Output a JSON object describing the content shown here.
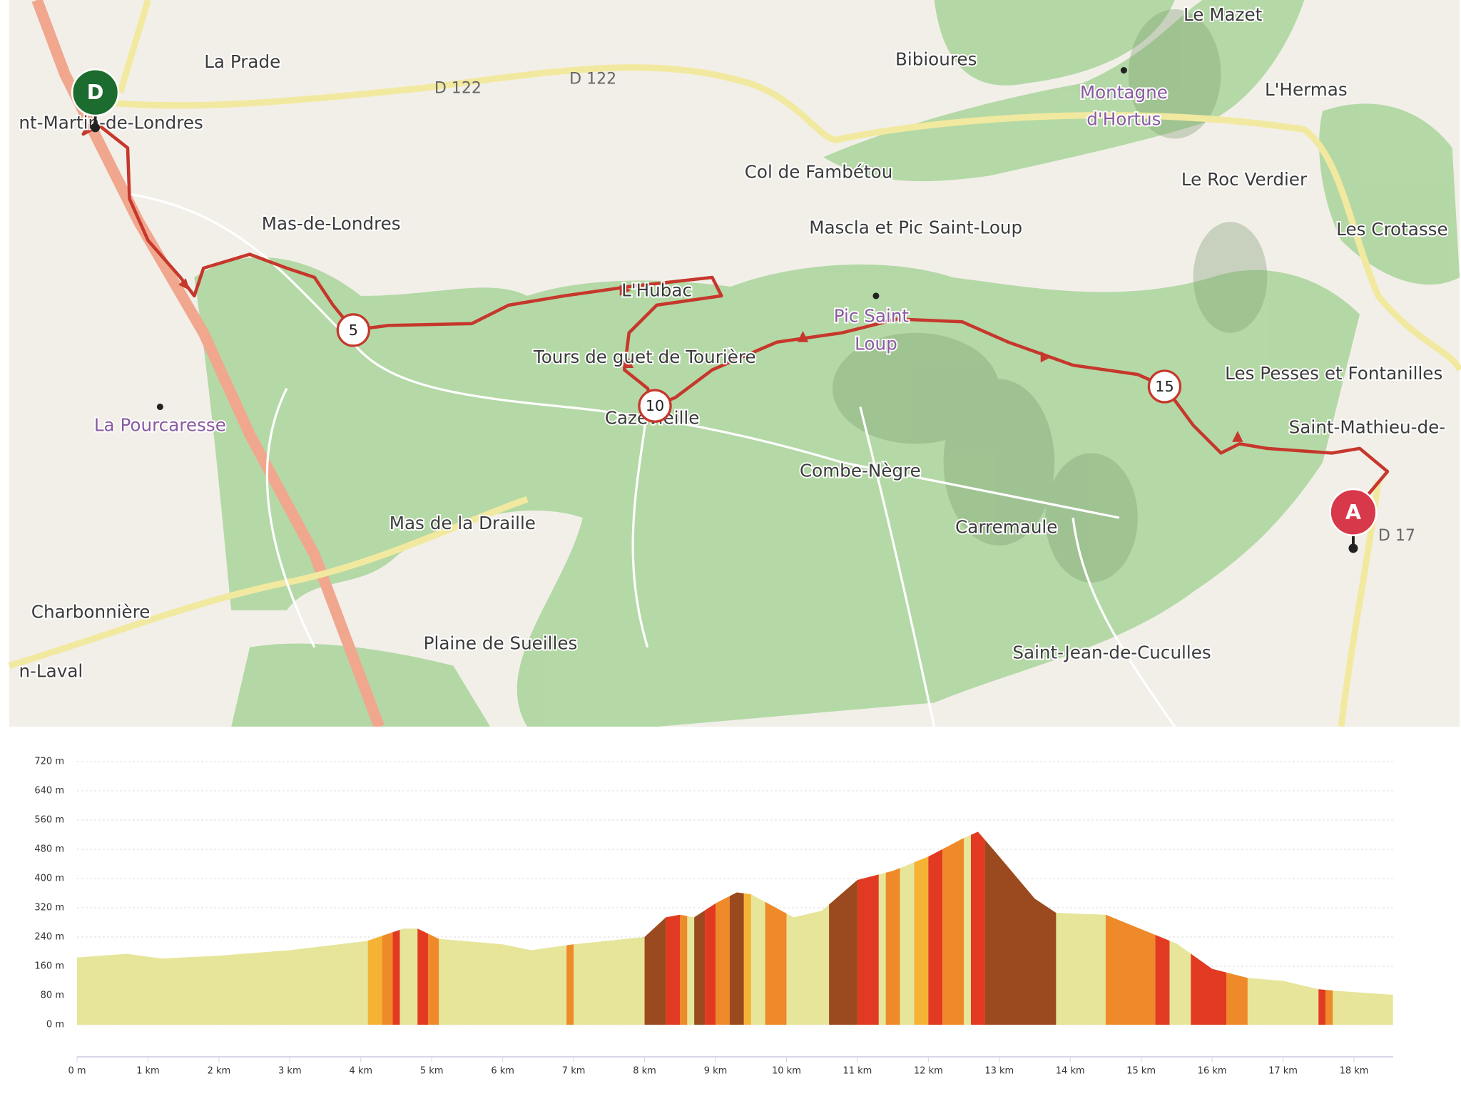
{
  "map": {
    "labels": [
      "La Prade",
      "nt-Martin-de-Londres",
      "D 122",
      "D 122",
      "Bibioures",
      "Le Mazet",
      "Montagne",
      "d'Hortus",
      "L'Hermas",
      "Col de Fambétou",
      "Le Roc Verdier",
      "Mas-de-Londres",
      "Mascla et Pic Saint-Loup",
      "Les Crotasse",
      "L'Hubac",
      "Tours de guet de Tourière",
      "Pic Saint",
      "Loup",
      "Les Pesses et Fontanilles",
      "La Pourcaresse",
      "Cazevieille",
      "Saint-Mathieu-de-",
      "Combe-Nègre",
      "Carremaule",
      "Mas de la Draille",
      "D 17",
      "Charbonnière",
      "Plaine de Sueilles",
      "Saint-Jean-de-Cuculles",
      "n-Laval"
    ],
    "markers": [
      "D",
      "A",
      "5",
      "10",
      "15"
    ]
  },
  "chart_data": {
    "type": "area",
    "color": "#e6e59a",
    "x": [
      0,
      0.7,
      1.2,
      2,
      3,
      4,
      4.1,
      4.6,
      4.8,
      5.1,
      6,
      6.4,
      7,
      8,
      8.3,
      8.5,
      8.7,
      9,
      9.3,
      9.5,
      10.1,
      10.5,
      11,
      11.5,
      12,
      12.5,
      12.7,
      13,
      13.5,
      13.8,
      14.5,
      15.5,
      16,
      16.5,
      17,
      17.5,
      17.8,
      18.55
    ],
    "values": [
      184,
      194,
      181,
      189,
      204,
      227,
      230,
      263,
      263,
      235,
      220,
      204,
      220,
      240,
      294,
      301,
      294,
      332,
      362,
      357,
      294,
      312,
      396,
      421,
      460,
      511,
      528,
      460,
      345,
      306,
      301,
      222,
      153,
      128,
      120,
      97,
      92,
      82
    ],
    "bands": [
      {
        "from": 4.1,
        "to": 4.3,
        "color": "#f5b335"
      },
      {
        "from": 4.3,
        "to": 4.45,
        "color": "#ef8a2a"
      },
      {
        "from": 4.45,
        "to": 4.55,
        "color": "#e23a22"
      },
      {
        "from": 4.8,
        "to": 4.95,
        "color": "#e23a22"
      },
      {
        "from": 4.95,
        "to": 5.1,
        "color": "#ef8a2a"
      },
      {
        "from": 6.9,
        "to": 7.0,
        "color": "#ef8a2a"
      },
      {
        "from": 8.0,
        "to": 8.3,
        "color": "#9a4a1e"
      },
      {
        "from": 8.3,
        "to": 8.5,
        "color": "#e23a22"
      },
      {
        "from": 8.5,
        "to": 8.6,
        "color": "#ef8a2a"
      },
      {
        "from": 8.7,
        "to": 8.85,
        "color": "#9a4a1e"
      },
      {
        "from": 8.85,
        "to": 9.0,
        "color": "#e23a22"
      },
      {
        "from": 9.0,
        "to": 9.2,
        "color": "#ef8a2a"
      },
      {
        "from": 9.2,
        "to": 9.4,
        "color": "#9a4a1e"
      },
      {
        "from": 9.4,
        "to": 9.5,
        "color": "#f5b335"
      },
      {
        "from": 9.7,
        "to": 10.0,
        "color": "#ef8a2a"
      },
      {
        "from": 10.6,
        "to": 11.0,
        "color": "#9a4a1e"
      },
      {
        "from": 11.0,
        "to": 11.3,
        "color": "#e23a22"
      },
      {
        "from": 11.4,
        "to": 11.6,
        "color": "#ef8a2a"
      },
      {
        "from": 11.8,
        "to": 12.0,
        "color": "#f5b335"
      },
      {
        "from": 12.0,
        "to": 12.2,
        "color": "#e23a22"
      },
      {
        "from": 12.2,
        "to": 12.5,
        "color": "#ef8a2a"
      },
      {
        "from": 12.6,
        "to": 12.8,
        "color": "#e23a22"
      },
      {
        "from": 12.8,
        "to": 13.8,
        "color": "#9a4a1e"
      },
      {
        "from": 14.5,
        "to": 15.2,
        "color": "#ef8a2a"
      },
      {
        "from": 15.2,
        "to": 15.4,
        "color": "#e23a22"
      },
      {
        "from": 15.7,
        "to": 16.2,
        "color": "#e23a22"
      },
      {
        "from": 16.2,
        "to": 16.5,
        "color": "#ef8a2a"
      },
      {
        "from": 17.5,
        "to": 17.6,
        "color": "#e23a22"
      },
      {
        "from": 17.6,
        "to": 17.7,
        "color": "#ef8a2a"
      }
    ],
    "xlim": [
      0,
      18.55
    ],
    "ylim": [
      0,
      720
    ],
    "yticks": [
      {
        "value": 0,
        "label": "0 m"
      },
      {
        "value": 80,
        "label": "80 m"
      },
      {
        "value": 160,
        "label": "160 m"
      },
      {
        "value": 240,
        "label": "240 m"
      },
      {
        "value": 320,
        "label": "320 m"
      },
      {
        "value": 400,
        "label": "400 m"
      },
      {
        "value": 480,
        "label": "480 m"
      },
      {
        "value": 560,
        "label": "560 m"
      },
      {
        "value": 640,
        "label": "640 m"
      },
      {
        "value": 720,
        "label": "720 m"
      }
    ],
    "xticks": [
      {
        "value": 0,
        "label": "0 m"
      },
      {
        "value": 1,
        "label": "1 km"
      },
      {
        "value": 2,
        "label": "2 km"
      },
      {
        "value": 3,
        "label": "3 km"
      },
      {
        "value": 4,
        "label": "4 km"
      },
      {
        "value": 5,
        "label": "5 km"
      },
      {
        "value": 6,
        "label": "6 km"
      },
      {
        "value": 7,
        "label": "7 km"
      },
      {
        "value": 8,
        "label": "8 km"
      },
      {
        "value": 9,
        "label": "9 km"
      },
      {
        "value": 10,
        "label": "10 km"
      },
      {
        "value": 11,
        "label": "11 km"
      },
      {
        "value": 12,
        "label": "12 km"
      },
      {
        "value": 13,
        "label": "13 km"
      },
      {
        "value": 14,
        "label": "14 km"
      },
      {
        "value": 15,
        "label": "15 km"
      },
      {
        "value": 16,
        "label": "16 km"
      },
      {
        "value": 17,
        "label": "17 km"
      },
      {
        "value": 18,
        "label": "18 km"
      }
    ],
    "grid": true
  }
}
